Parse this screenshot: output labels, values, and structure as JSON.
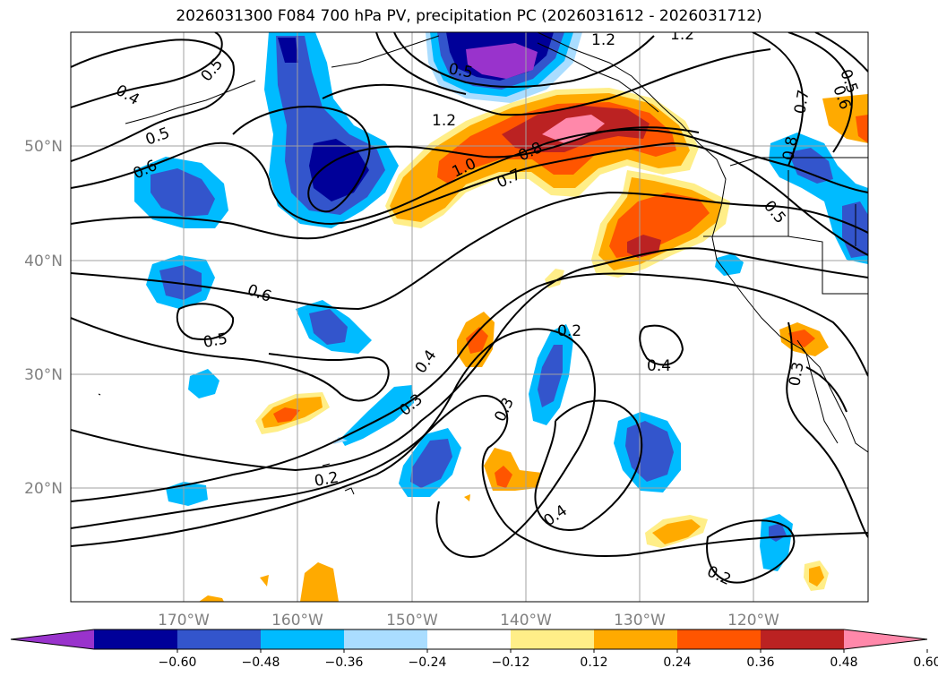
{
  "title": "2026031300 F084 700 hPa PV, precipitation PC (2026031612 - 2026031712)",
  "longitude_labels": [
    "170°W",
    "160°W",
    "150°W",
    "140°W",
    "130°W",
    "120°W"
  ],
  "latitude_labels": [
    "50°N",
    "40°N",
    "30°N",
    "20°N"
  ],
  "colorbar": {
    "tick_labels": [
      "-0.60",
      "-0.48",
      "-0.36",
      "-0.24",
      "-0.12",
      "0.12",
      "0.24",
      "0.36",
      "0.48",
      "0.60"
    ],
    "colors": [
      "#9933cc",
      "#000099",
      "#3355cc",
      "#00bbff",
      "#aaddff",
      "#ffffff",
      "#ffee88",
      "#ffaa00",
      "#ff5500",
      "#bb2222",
      "#ff88aa"
    ]
  },
  "contour_labels": [
    "0.4",
    "0.5",
    "0.5",
    "0.6",
    "0.6",
    "0.5",
    "0.5",
    "1.2",
    "1.2",
    "1.2",
    "1.0",
    "0.8",
    "0.7",
    "0.8",
    "0.7",
    "0.5",
    "0.4",
    "0.3",
    "0.3",
    "0.2",
    "0.2",
    "0.4",
    "0.4",
    "0.2",
    "0.3",
    "0.5",
    "0.6"
  ],
  "map": {
    "grid": true,
    "contour_field": "700 hPa PV",
    "shaded_field": "precipitation PC"
  }
}
